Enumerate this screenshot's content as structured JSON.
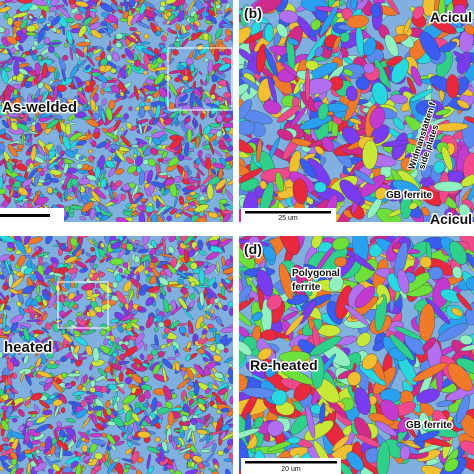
{
  "panels": [
    {
      "annotations": [
        "As-welded"
      ]
    },
    {
      "label": "(b)",
      "annotations": [
        "Acicul",
        "Widmanstätten f",
        "side plates",
        "GB ferrite",
        "Acicul"
      ],
      "scale": "25 um"
    },
    {
      "annotations": [
        "heated"
      ]
    },
    {
      "label": "(d)",
      "annotations": [
        "Polygonal",
        "ferrite",
        "Re-heated",
        "GB ferrite"
      ],
      "scale": "20 um"
    }
  ]
}
